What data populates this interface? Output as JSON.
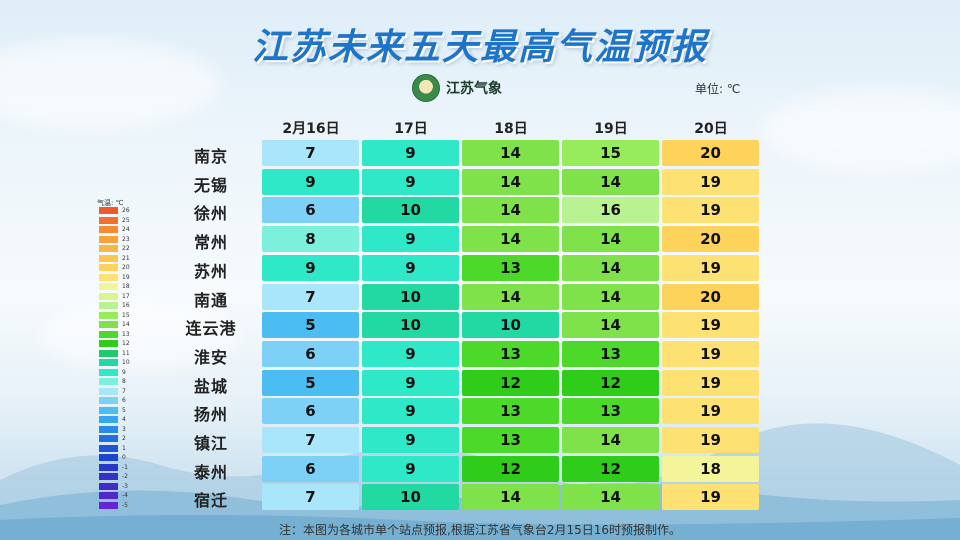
{
  "title": "江苏未来五天最高气温预报",
  "logo": {
    "icon": "meteorological-emblem",
    "text": "江苏气象"
  },
  "unit": "单位: ℃",
  "columns": [
    "2月16日",
    "17日",
    "18日",
    "19日",
    "20日"
  ],
  "rows": [
    {
      "city": "南京",
      "temps": [
        7,
        9,
        14,
        15,
        20
      ]
    },
    {
      "city": "无锡",
      "temps": [
        9,
        9,
        14,
        14,
        19
      ]
    },
    {
      "city": "徐州",
      "temps": [
        6,
        10,
        14,
        16,
        19
      ]
    },
    {
      "city": "常州",
      "temps": [
        8,
        9,
        14,
        14,
        20
      ]
    },
    {
      "city": "苏州",
      "temps": [
        9,
        9,
        13,
        14,
        19
      ]
    },
    {
      "city": "南通",
      "temps": [
        7,
        10,
        14,
        14,
        20
      ]
    },
    {
      "city": "连云港",
      "temps": [
        5,
        10,
        10,
        14,
        19
      ]
    },
    {
      "city": "淮安",
      "temps": [
        6,
        9,
        13,
        13,
        19
      ]
    },
    {
      "city": "盐城",
      "temps": [
        5,
        9,
        12,
        12,
        19
      ]
    },
    {
      "city": "扬州",
      "temps": [
        6,
        9,
        13,
        13,
        19
      ]
    },
    {
      "city": "镇江",
      "temps": [
        7,
        9,
        13,
        14,
        19
      ]
    },
    {
      "city": "泰州",
      "temps": [
        6,
        9,
        12,
        12,
        18
      ]
    },
    {
      "city": "宿迁",
      "temps": [
        7,
        10,
        14,
        14,
        19
      ]
    }
  ],
  "legend": {
    "title": "气温: ℃",
    "levels": [
      {
        "label": "26",
        "color": "#ef5a2a"
      },
      {
        "label": "25",
        "color": "#f46f2e"
      },
      {
        "label": "24",
        "color": "#f78a33"
      },
      {
        "label": "23",
        "color": "#f9a23a"
      },
      {
        "label": "22",
        "color": "#fbb743"
      },
      {
        "label": "21",
        "color": "#fcc74e"
      },
      {
        "label": "20",
        "color": "#fdd35c"
      },
      {
        "label": "19",
        "color": "#fde173"
      },
      {
        "label": "18",
        "color": "#f4f59a"
      },
      {
        "label": "17",
        "color": "#dcf58f"
      },
      {
        "label": "16",
        "color": "#b9f290"
      },
      {
        "label": "15",
        "color": "#96ec5a"
      },
      {
        "label": "14",
        "color": "#7fe24a"
      },
      {
        "label": "13",
        "color": "#4dd92a"
      },
      {
        "label": "12",
        "color": "#2fcc1a"
      },
      {
        "label": "11",
        "color": "#1fc96e"
      },
      {
        "label": "10",
        "color": "#22d9a3"
      },
      {
        "label": "9",
        "color": "#2ee8c8"
      },
      {
        "label": "8",
        "color": "#7df0dc"
      },
      {
        "label": "7",
        "color": "#a9e6fb"
      },
      {
        "label": "6",
        "color": "#7dd1f6"
      },
      {
        "label": "5",
        "color": "#4cbdf2"
      },
      {
        "label": "4",
        "color": "#35a7ef"
      },
      {
        "label": "3",
        "color": "#2a8ae9"
      },
      {
        "label": "2",
        "color": "#226fe0"
      },
      {
        "label": "1",
        "color": "#1d57d6"
      },
      {
        "label": "0",
        "color": "#1c44cc"
      },
      {
        "label": "-1",
        "color": "#2737c8"
      },
      {
        "label": "-2",
        "color": "#3530c6"
      },
      {
        "label": "-3",
        "color": "#432bc8"
      },
      {
        "label": "-4",
        "color": "#5228cc"
      },
      {
        "label": "-5",
        "color": "#6226d2"
      }
    ]
  },
  "footnote": "注：本图为各城市单个站点预报,根据江苏省气象台2月15日16时预报制作。"
}
